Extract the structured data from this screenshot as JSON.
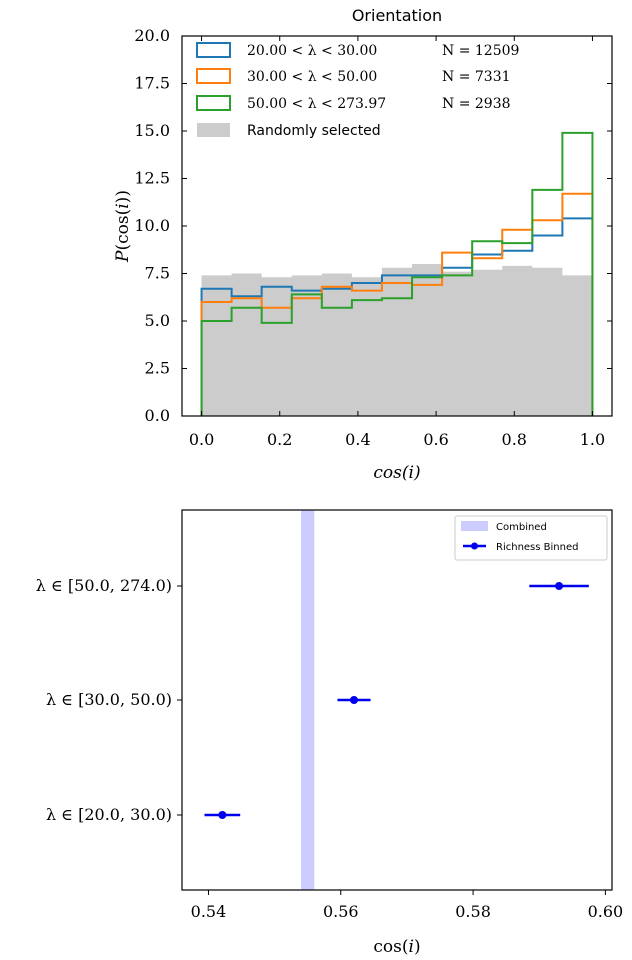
{
  "chart_data": [
    {
      "type": "histogram",
      "title": "Orientation",
      "xlabel": "cos(i)",
      "ylabel": "P(cos(i))",
      "xlim": [
        -0.05,
        1.05
      ],
      "ylim": [
        0,
        20
      ],
      "xticks": [
        0.0,
        0.2,
        0.4,
        0.6,
        0.8,
        1.0
      ],
      "xtick_labels": [
        "0.0",
        "0.2",
        "0.4",
        "0.6",
        "0.8",
        "1.0"
      ],
      "yticks": [
        0,
        2.5,
        5,
        7.5,
        10,
        12.5,
        15,
        17.5,
        20
      ],
      "ytick_labels": [
        "0.0",
        "2.5",
        "5.0",
        "7.5",
        "10.0",
        "12.5",
        "15.0",
        "17.5",
        "20.0"
      ],
      "bin_edges": [
        0.0,
        0.0769,
        0.1538,
        0.2308,
        0.3077,
        0.3846,
        0.4615,
        0.5385,
        0.6154,
        0.6923,
        0.7692,
        0.8462,
        0.9231,
        1.0
      ],
      "background": {
        "name": "Randomly selected",
        "color": "#cccccc",
        "values": [
          7.4,
          7.5,
          7.3,
          7.4,
          7.5,
          7.3,
          7.8,
          8.0,
          7.6,
          7.7,
          7.9,
          7.8,
          7.4
        ]
      },
      "series": [
        {
          "name": "20.00 < λ < 30.00",
          "n_label": "N = 12509",
          "color": "#1f77b4",
          "values": [
            6.7,
            6.3,
            6.8,
            6.6,
            6.7,
            7.0,
            7.4,
            7.4,
            7.8,
            8.5,
            8.7,
            9.5,
            10.4
          ]
        },
        {
          "name": "30.00 < λ < 50.00",
          "n_label": "N = 7331",
          "color": "#ff7f0e",
          "values": [
            6.0,
            6.2,
            5.7,
            6.2,
            6.8,
            6.6,
            7.0,
            6.9,
            8.6,
            8.3,
            9.8,
            10.3,
            11.7
          ]
        },
        {
          "name": "50.00 < λ < 273.97",
          "n_label": "N = 2938",
          "color": "#2ca02c",
          "values": [
            5.0,
            5.7,
            4.9,
            6.4,
            5.7,
            6.1,
            6.2,
            7.3,
            7.4,
            9.2,
            9.1,
            11.9,
            14.9
          ]
        }
      ],
      "legend": "top-left"
    },
    {
      "type": "errorbar",
      "xlabel": "cos(i)",
      "xlim": [
        0.536,
        0.601
      ],
      "xticks": [
        0.54,
        0.56,
        0.58,
        0.6
      ],
      "xtick_labels": [
        "0.54",
        "0.56",
        "0.58",
        "0.60"
      ],
      "categories": [
        "λ ∈ [50.0, 274.0)",
        "λ ∈ [30.0, 50.0)",
        "λ ∈ [20.0, 30.0)"
      ],
      "points": [
        {
          "category": "λ ∈ [50.0, 274.0)",
          "x": 0.593,
          "xerr": 0.0045
        },
        {
          "category": "λ ∈ [30.0, 50.0)",
          "x": 0.562,
          "xerr": 0.0025
        },
        {
          "category": "λ ∈ [20.0, 30.0)",
          "x": 0.5421,
          "xerr": 0.0027
        }
      ],
      "combined_band": {
        "name": "Combined",
        "x_range": [
          0.554,
          0.556
        ],
        "color": "#ccccff"
      },
      "series_name": "Richness Binned",
      "series_color": "#0000ee",
      "legend": "top-right"
    }
  ]
}
